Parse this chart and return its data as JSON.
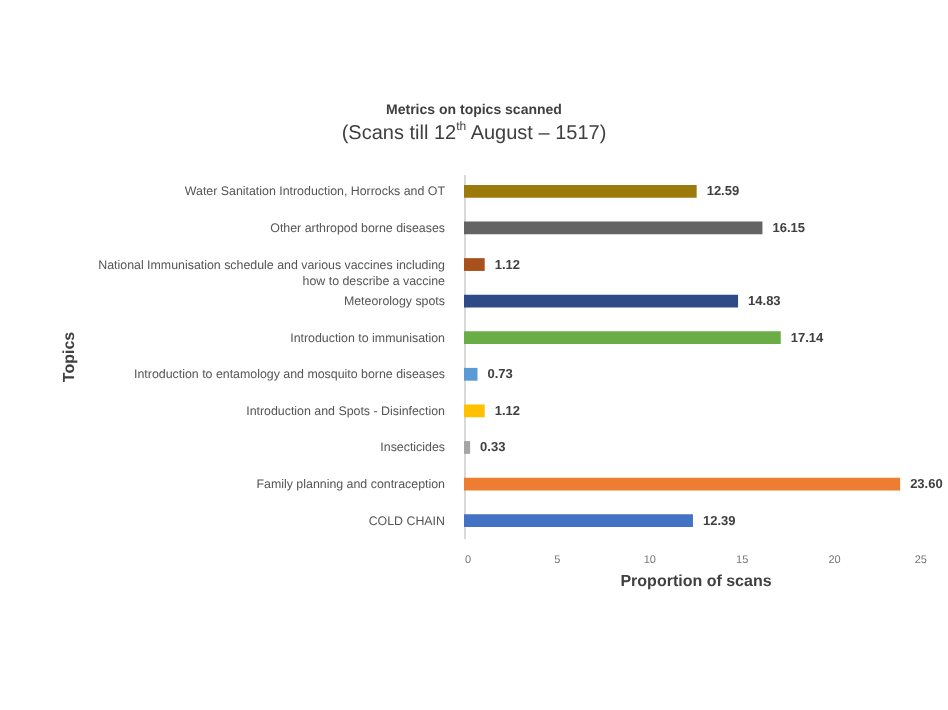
{
  "chart_data": {
    "type": "bar",
    "orientation": "horizontal",
    "title": "Metrics on topics scanned",
    "subtitle": "(Scans till 12$^{th}$ August – 1517)",
    "xlabel": "Proportion of scans",
    "ylabel": "Topics",
    "categories": [
      "Water Sanitation Introduction, Horrocks and OT",
      "Other arthropod borne diseases",
      "National Immunisation schedule and various vaccines including how to describe a vaccine",
      "Meteorology spots",
      "Introduction to immunisation",
      "Introduction to entamology and mosquito borne diseases",
      "Introduction and Spots - Disinfection",
      "Insecticides",
      "Family planning and contraception",
      "COLD CHAIN"
    ],
    "values": [
      12.59,
      16.15,
      1.12,
      14.83,
      17.14,
      0.73,
      1.12,
      0.33,
      23.6,
      12.39
    ],
    "value_labels": [
      "12.59",
      "16.15",
      "1.12",
      "14.83",
      "17.14",
      "0.73",
      "1.12",
      "0.33",
      "23.60",
      "12.39"
    ],
    "colors": [
      "#9c7a0c",
      "#646464",
      "#a9501c",
      "#2f4b87",
      "#6aac46",
      "#5b9bd5",
      "#ffc000",
      "#a5a5a5",
      "#ed7d31",
      "#4472c4"
    ],
    "xlim": [
      0,
      25
    ],
    "xticks": [
      0,
      5,
      10,
      15,
      20,
      25
    ],
    "grid": false
  }
}
